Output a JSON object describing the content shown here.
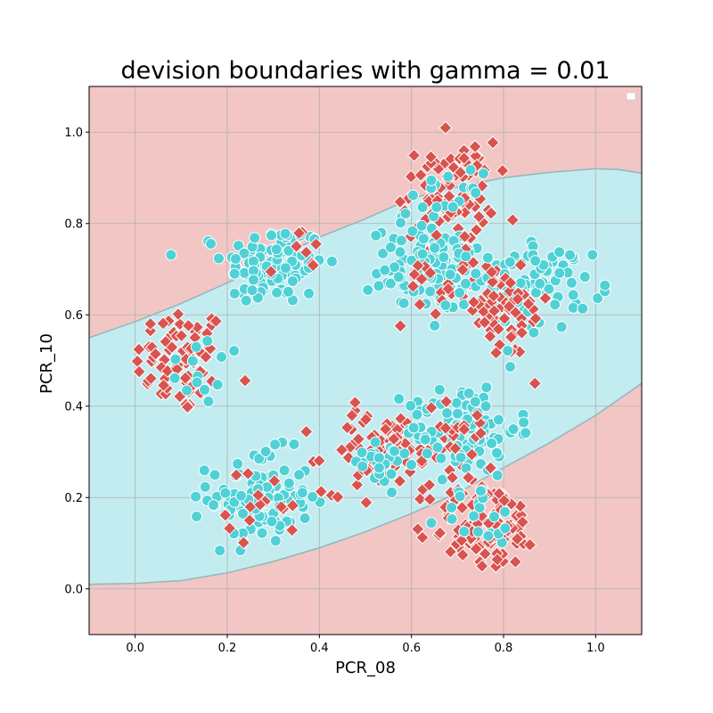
{
  "chart_data": {
    "type": "scatter",
    "title": "devision boundaries with gamma = 0.01",
    "xlabel": "PCR_08",
    "ylabel": "PCR_10",
    "xlim": [
      -0.1,
      1.1
    ],
    "ylim": [
      -0.1,
      1.1
    ],
    "xticks": [
      "0.0",
      "0.2",
      "0.4",
      "0.6",
      "0.8",
      "1.0"
    ],
    "yticks": [
      "0.0",
      "0.2",
      "0.4",
      "0.6",
      "0.8",
      "1.0"
    ],
    "xtick_values": [
      0.0,
      0.2,
      0.4,
      0.6,
      0.8,
      1.0
    ],
    "ytick_values": [
      0.0,
      0.2,
      0.4,
      0.6,
      0.8,
      1.0
    ],
    "grid": true,
    "legend": "top-right",
    "legend_entries": [],
    "colors": {
      "negative_region": "#f2c6c4",
      "positive_region": "#c3ecf1",
      "boundary": "#8fb8bd",
      "negative_marker": "#d9534f",
      "positive_marker": "#4fd1d6"
    },
    "decision_boundary": {
      "upper": [
        [
          -0.1,
          0.55
        ],
        [
          0.0,
          0.585
        ],
        [
          0.1,
          0.625
        ],
        [
          0.2,
          0.67
        ],
        [
          0.3,
          0.72
        ],
        [
          0.4,
          0.77
        ],
        [
          0.5,
          0.81
        ],
        [
          0.6,
          0.855
        ],
        [
          0.7,
          0.88
        ],
        [
          0.8,
          0.9
        ],
        [
          0.9,
          0.912
        ],
        [
          1.0,
          0.92
        ],
        [
          1.05,
          0.918
        ],
        [
          1.1,
          0.91
        ]
      ],
      "lower": [
        [
          -0.1,
          0.01
        ],
        [
          0.0,
          0.012
        ],
        [
          0.1,
          0.018
        ],
        [
          0.2,
          0.035
        ],
        [
          0.3,
          0.06
        ],
        [
          0.4,
          0.09
        ],
        [
          0.5,
          0.125
        ],
        [
          0.6,
          0.165
        ],
        [
          0.7,
          0.21
        ],
        [
          0.8,
          0.265
        ],
        [
          0.9,
          0.32
        ],
        [
          1.0,
          0.38
        ],
        [
          1.05,
          0.415
        ],
        [
          1.1,
          0.45
        ]
      ]
    },
    "clusters": [
      {
        "class": "negative",
        "marker": "diamond",
        "center": [
          0.1,
          0.5
        ],
        "spread": [
          0.05,
          0.06
        ],
        "count": 75
      },
      {
        "class": "positive",
        "marker": "circle",
        "center": [
          0.13,
          0.48
        ],
        "spread": [
          0.04,
          0.04
        ],
        "count": 12
      },
      {
        "class": "positive",
        "marker": "circle",
        "center": [
          0.3,
          0.71
        ],
        "spread": [
          0.055,
          0.045
        ],
        "count": 120
      },
      {
        "class": "negative",
        "marker": "diamond",
        "center": [
          0.35,
          0.72
        ],
        "spread": [
          0.03,
          0.04
        ],
        "count": 8
      },
      {
        "class": "positive",
        "marker": "circle",
        "center": [
          0.27,
          0.2
        ],
        "spread": [
          0.055,
          0.05
        ],
        "count": 110
      },
      {
        "class": "negative",
        "marker": "diamond",
        "center": [
          0.28,
          0.18
        ],
        "spread": [
          0.04,
          0.04
        ],
        "count": 15
      },
      {
        "class": "negative",
        "marker": "diamond",
        "center": [
          0.68,
          0.87
        ],
        "spread": [
          0.05,
          0.055
        ],
        "count": 85
      },
      {
        "class": "positive",
        "marker": "circle",
        "center": [
          0.67,
          0.83
        ],
        "spread": [
          0.04,
          0.04
        ],
        "count": 25
      },
      {
        "class": "positive",
        "marker": "circle",
        "center": [
          0.65,
          0.7
        ],
        "spread": [
          0.07,
          0.045
        ],
        "count": 100
      },
      {
        "class": "negative",
        "marker": "diamond",
        "center": [
          0.68,
          0.67
        ],
        "spread": [
          0.05,
          0.05
        ],
        "count": 30
      },
      {
        "class": "positive",
        "marker": "circle",
        "center": [
          0.85,
          0.66
        ],
        "spread": [
          0.07,
          0.045
        ],
        "count": 100
      },
      {
        "class": "negative",
        "marker": "diamond",
        "center": [
          0.8,
          0.6
        ],
        "spread": [
          0.05,
          0.05
        ],
        "count": 55
      },
      {
        "class": "negative",
        "marker": "diamond",
        "center": [
          0.55,
          0.3
        ],
        "spread": [
          0.07,
          0.045
        ],
        "count": 95
      },
      {
        "class": "positive",
        "marker": "circle",
        "center": [
          0.52,
          0.29
        ],
        "spread": [
          0.04,
          0.03
        ],
        "count": 25
      },
      {
        "class": "positive",
        "marker": "circle",
        "center": [
          0.71,
          0.35
        ],
        "spread": [
          0.06,
          0.05
        ],
        "count": 110
      },
      {
        "class": "negative",
        "marker": "diamond",
        "center": [
          0.7,
          0.34
        ],
        "spread": [
          0.05,
          0.04
        ],
        "count": 20
      },
      {
        "class": "negative",
        "marker": "diamond",
        "center": [
          0.76,
          0.14
        ],
        "spread": [
          0.06,
          0.05
        ],
        "count": 100
      },
      {
        "class": "positive",
        "marker": "circle",
        "center": [
          0.75,
          0.15
        ],
        "spread": [
          0.04,
          0.04
        ],
        "count": 20
      }
    ]
  }
}
